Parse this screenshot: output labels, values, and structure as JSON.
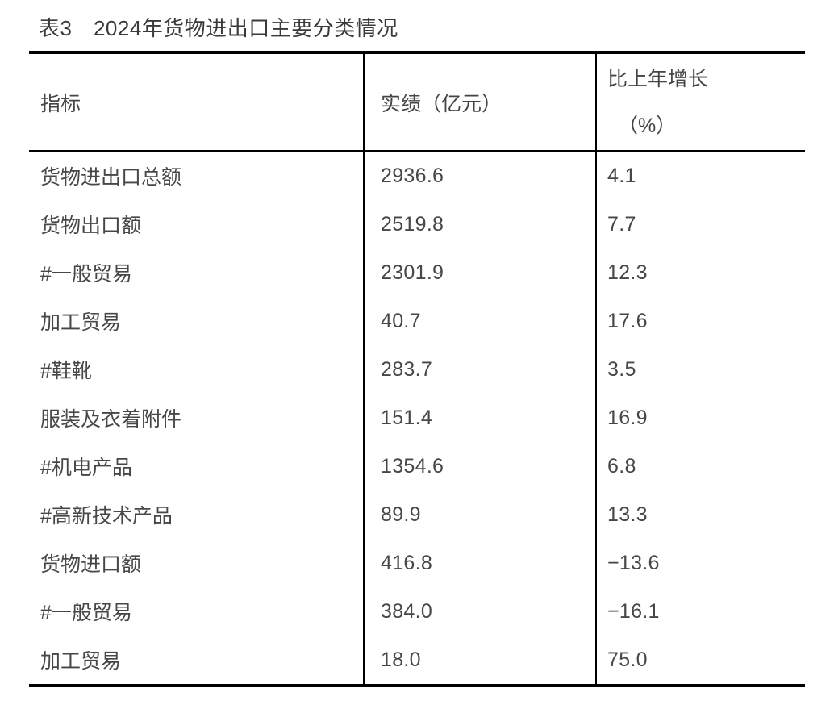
{
  "title": "表3　2024年货物进出口主要分类情况",
  "table": {
    "headers": {
      "indicator": "指标",
      "value": "实绩（亿元）",
      "growth_line1": "比上年增长",
      "growth_line2": "（%）"
    },
    "rows": [
      {
        "indicator": "货物进出口总额",
        "value": "2936.6",
        "growth": "4.1"
      },
      {
        "indicator": "货物出口额",
        "value": "2519.8",
        "growth": "7.7"
      },
      {
        "indicator": "#一般贸易",
        "value": "2301.9",
        "growth": "12.3"
      },
      {
        "indicator": "加工贸易",
        "value": "40.7",
        "growth": "17.6"
      },
      {
        "indicator": "#鞋靴",
        "value": "283.7",
        "growth": "3.5"
      },
      {
        "indicator": "服装及衣着附件",
        "value": "151.4",
        "growth": "16.9"
      },
      {
        "indicator": "#机电产品",
        "value": "1354.6",
        "growth": "6.8"
      },
      {
        "indicator": "#高新技术产品",
        "value": "89.9",
        "growth": "13.3"
      },
      {
        "indicator": "货物进口额",
        "value": "416.8",
        "growth": "−13.6"
      },
      {
        "indicator": "#一般贸易",
        "value": "384.0",
        "growth": "−16.1"
      },
      {
        "indicator": "加工贸易",
        "value": "18.0",
        "growth": "75.0"
      }
    ]
  }
}
